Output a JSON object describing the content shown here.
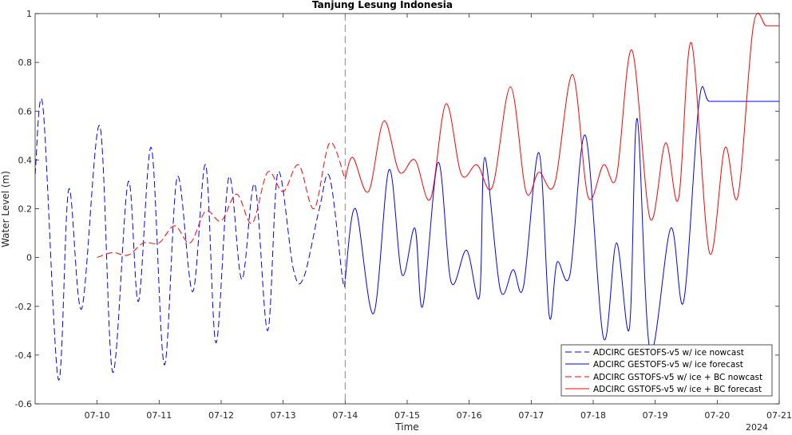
{
  "chart_data": {
    "type": "line",
    "title": "Tanjung Lesung Indonesia",
    "xlabel": "Time",
    "ylabel": "Water Level (m)",
    "year_label": "2024",
    "x_unit": "date (July 2024)",
    "xlim": [
      "2024-07-09",
      "2024-07-21"
    ],
    "ylim": [
      -0.6,
      1.0
    ],
    "yticks": [
      -0.6,
      -0.4,
      -0.2,
      0,
      0.2,
      0.4,
      0.6,
      0.8,
      1.0
    ],
    "ytick_labels": [
      "-0.6",
      "-0.4",
      "-0.2",
      "0",
      "0.2",
      "0.4",
      "0.6",
      "0.8",
      "1"
    ],
    "xticks": [
      "2024-07-10",
      "2024-07-11",
      "2024-07-12",
      "2024-07-13",
      "2024-07-14",
      "2024-07-15",
      "2024-07-16",
      "2024-07-17",
      "2024-07-18",
      "2024-07-19",
      "2024-07-20",
      "2024-07-21"
    ],
    "xtick_labels": [
      "07-10",
      "07-11",
      "07-12",
      "07-13",
      "07-14",
      "07-15",
      "07-16",
      "07-17",
      "07-18",
      "07-19",
      "07-20",
      "07-21"
    ],
    "nowcast_divider": "2024-07-14",
    "grid": false,
    "legend_position": "bottom-right",
    "series": [
      {
        "name": "ADCIRC GESTOFS-v5 w/ ice nowcast",
        "color": "#0000ff",
        "dash": "dashed",
        "x": [
          "2024-07-09 00:00",
          "2024-07-09 03:00",
          "2024-07-09 09:00",
          "2024-07-09 13:00",
          "2024-07-09 18:00",
          "2024-07-10 01:00",
          "2024-07-10 06:00",
          "2024-07-10 12:00",
          "2024-07-10 16:00",
          "2024-07-10 21:00",
          "2024-07-11 02:00",
          "2024-07-11 07:00",
          "2024-07-11 13:00",
          "2024-07-11 18:00",
          "2024-07-11 22:00",
          "2024-07-12 03:00",
          "2024-07-12 08:00",
          "2024-07-12 13:00",
          "2024-07-12 18:00",
          "2024-07-12 22:00",
          "2024-07-13 04:00",
          "2024-07-13 08:00",
          "2024-07-13 14:00",
          "2024-07-13 18:00",
          "2024-07-13 23:00",
          "2024-07-14 00:00"
        ],
        "y": [
          0.34,
          0.62,
          -0.5,
          0.28,
          -0.21,
          0.54,
          -0.47,
          0.31,
          -0.18,
          0.45,
          -0.44,
          0.33,
          -0.14,
          0.38,
          -0.35,
          0.33,
          -0.09,
          0.3,
          -0.3,
          0.35,
          -0.05,
          -0.08,
          0.2,
          0.33,
          -0.09,
          -0.09
        ]
      },
      {
        "name": "ADCIRC GESTOFS-v5 w/ ice forecast",
        "color": "#0000ff",
        "dash": "solid",
        "x": [
          "2024-07-14 00:00",
          "2024-07-14 04:00",
          "2024-07-14 11:00",
          "2024-07-14 17:00",
          "2024-07-14 22:00",
          "2024-07-15 03:00",
          "2024-07-15 06:00",
          "2024-07-15 12:00",
          "2024-07-15 17:00",
          "2024-07-15 23:00",
          "2024-07-16 04:00",
          "2024-07-16 06:00",
          "2024-07-16 12:00",
          "2024-07-16 17:00",
          "2024-07-16 21:00",
          "2024-07-17 03:00",
          "2024-07-17 07:00",
          "2024-07-17 10:00",
          "2024-07-17 15:00",
          "2024-07-17 21:00",
          "2024-07-18 04:00",
          "2024-07-18 09:00",
          "2024-07-18 14:00",
          "2024-07-18 17:00",
          "2024-07-18 22:00",
          "2024-07-19 06:00",
          "2024-07-19 11:00",
          "2024-07-19 17:00",
          "2024-07-19 21:00",
          "2024-07-20 06:00",
          "2024-07-20 12:00",
          "2024-07-20 16:00",
          "2024-07-20 21:00",
          "2024-07-21 00:00"
        ],
        "y": [
          -0.09,
          0.2,
          -0.23,
          0.36,
          -0.07,
          0.12,
          -0.2,
          0.39,
          -0.1,
          0.03,
          -0.16,
          0.41,
          -0.13,
          -0.05,
          -0.12,
          0.43,
          -0.24,
          -0.02,
          -0.07,
          0.5,
          -0.33,
          0.06,
          -0.29,
          0.57,
          -0.38,
          0.12,
          -0.18,
          0.64,
          0.64,
          0.64,
          0.64,
          0.64,
          0.64,
          0.64
        ]
      },
      {
        "name": "ADCIRC GSTOFS-v5 w/ ice + BC nowcast",
        "color": "#ff0000",
        "dash": "dashed",
        "x": [
          "2024-07-10 00:00",
          "2024-07-10 06:00",
          "2024-07-10 12:00",
          "2024-07-10 18:00",
          "2024-07-11 00:00",
          "2024-07-11 06:00",
          "2024-07-11 12:00",
          "2024-07-11 18:00",
          "2024-07-12 00:00",
          "2024-07-12 06:00",
          "2024-07-12 12:00",
          "2024-07-12 18:00",
          "2024-07-13 00:00",
          "2024-07-13 06:00",
          "2024-07-13 12:00",
          "2024-07-13 18:00",
          "2024-07-14 00:00"
        ],
        "y": [
          0.0,
          0.02,
          0.01,
          0.06,
          0.06,
          0.13,
          0.06,
          0.19,
          0.15,
          0.26,
          0.14,
          0.35,
          0.27,
          0.38,
          0.2,
          0.47,
          0.32
        ]
      },
      {
        "name": "ADCIRC GSTOFS-v5 w/ ice + BC forecast",
        "color": "#ff0000",
        "dash": "solid",
        "x": [
          "2024-07-14 00:00",
          "2024-07-14 03:00",
          "2024-07-14 09:00",
          "2024-07-14 15:00",
          "2024-07-14 21:00",
          "2024-07-15 03:00",
          "2024-07-15 09:00",
          "2024-07-15 15:00",
          "2024-07-15 21:00",
          "2024-07-16 03:00",
          "2024-07-16 09:00",
          "2024-07-16 16:00",
          "2024-07-16 22:00",
          "2024-07-17 03:00",
          "2024-07-17 09:00",
          "2024-07-17 16:00",
          "2024-07-17 22:00",
          "2024-07-18 04:00",
          "2024-07-18 09:00",
          "2024-07-18 15:00",
          "2024-07-18 22:00",
          "2024-07-19 04:00",
          "2024-07-19 09:00",
          "2024-07-19 14:00",
          "2024-07-19 21:00",
          "2024-07-20 03:00",
          "2024-07-20 08:00",
          "2024-07-20 14:00",
          "2024-07-20 19:00",
          "2024-07-21 00:00"
        ],
        "y": [
          0.32,
          0.41,
          0.27,
          0.56,
          0.35,
          0.4,
          0.24,
          0.63,
          0.34,
          0.38,
          0.29,
          0.7,
          0.27,
          0.35,
          0.3,
          0.75,
          0.25,
          0.38,
          0.33,
          0.85,
          0.16,
          0.47,
          0.24,
          0.88,
          0.02,
          0.45,
          0.25,
          0.95,
          0.95,
          0.95
        ]
      }
    ]
  }
}
